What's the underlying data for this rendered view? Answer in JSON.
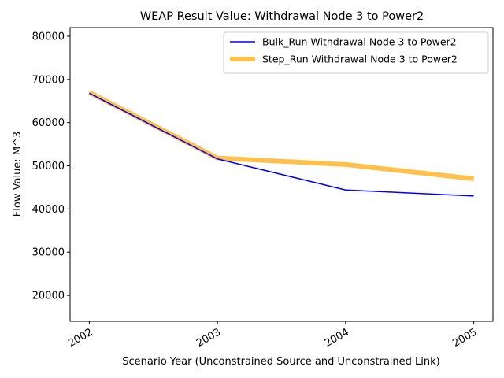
{
  "chart_data": {
    "type": "line",
    "title": "WEAP Result Value: Withdrawal Node 3 to Power2",
    "xlabel": "Scenario Year (Unconstrained Source and Unconstrained Link)",
    "ylabel": "Flow Value: M^3",
    "x": [
      "2002",
      "2003",
      "2004",
      "2005"
    ],
    "xlim": [
      2001.85,
      2005.15
    ],
    "ylim": [
      14000,
      82000
    ],
    "yticks": [
      20000,
      30000,
      40000,
      50000,
      60000,
      70000,
      80000
    ],
    "grid": false,
    "legend_position": "top-right",
    "series": [
      {
        "name": "Bulk_Run Withdrawal Node 3 to Power2",
        "values": [
          66800,
          51600,
          44400,
          43000
        ],
        "color": "#0000ff",
        "style": "thin"
      },
      {
        "name": "Step_Run Withdrawal Node 3 to Power2",
        "values": [
          67000,
          51800,
          50300,
          47000
        ],
        "color": "#ffa500",
        "style": "thick"
      }
    ]
  }
}
